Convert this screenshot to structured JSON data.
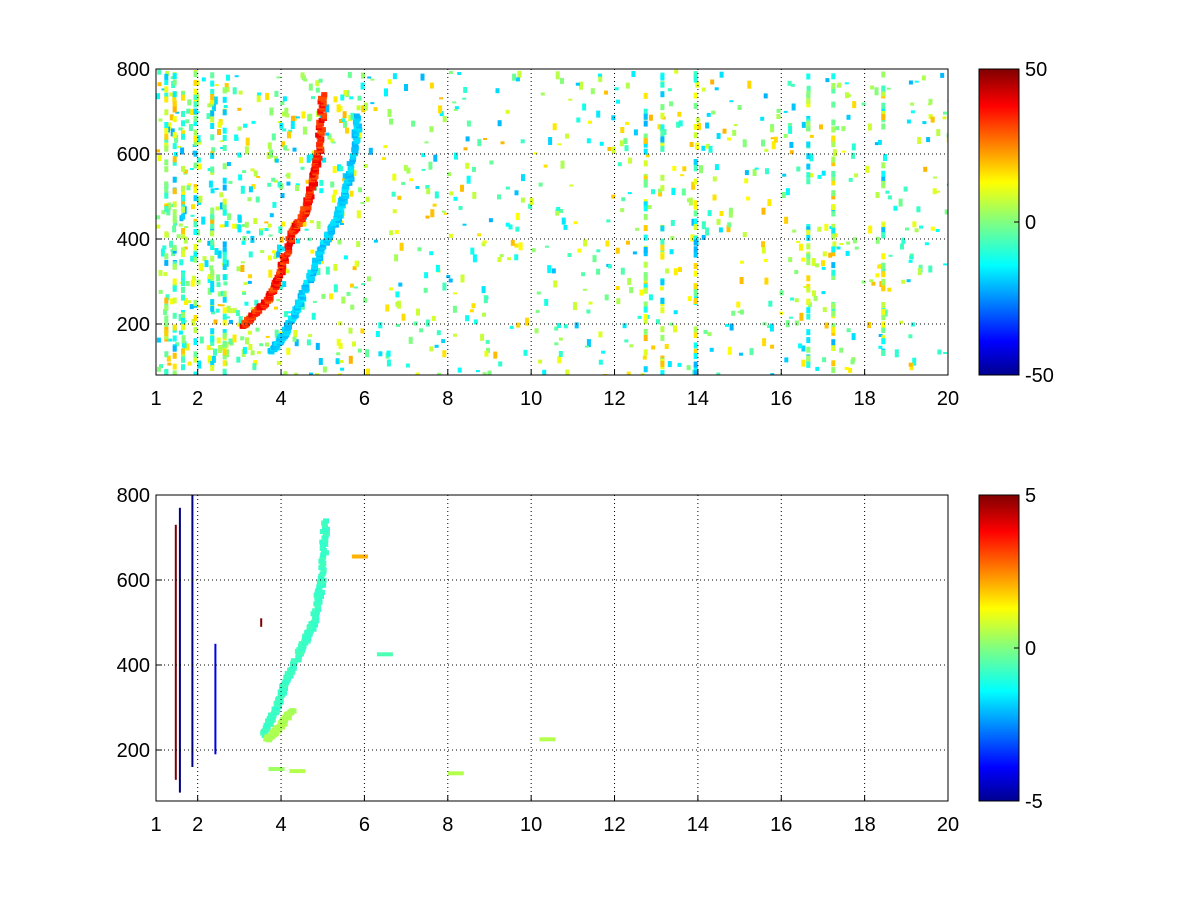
{
  "chart_data": [
    {
      "type": "heatmap",
      "title": "",
      "xlabel": "",
      "ylabel": "",
      "xlim": [
        1,
        20
      ],
      "ylim": [
        80,
        800
      ],
      "xticks": [
        1,
        2,
        4,
        6,
        8,
        10,
        12,
        14,
        16,
        18,
        20
      ],
      "yticks": [
        200,
        400,
        600,
        800
      ],
      "grid": true,
      "colormap": "jet",
      "colorbar": {
        "min": -50,
        "max": 50,
        "ticks": [
          -50,
          0,
          50
        ]
      },
      "ridges": [
        {
          "name": "",
          "x": [
            3.0,
            3.3,
            3.6,
            3.9,
            4.2,
            4.5,
            4.7,
            4.85,
            4.95
          ],
          "y": [
            200,
            230,
            260,
            320,
            420,
            470,
            540,
            620,
            750
          ],
          "value": 40
        },
        {
          "name": "",
          "x": [
            3.7,
            4.0,
            4.4,
            4.9,
            5.3,
            5.6,
            5.8
          ],
          "y": [
            140,
            180,
            260,
            380,
            460,
            560,
            700
          ],
          "value": -20
        }
      ],
      "noise": {
        "value_range": [
          -20,
          20
        ],
        "strong_columns_x": [
          1.2,
          1.4,
          1.6,
          1.9,
          2.3,
          2.6,
          12.7,
          13.1,
          13.9,
          16.6,
          17.2,
          18.4
        ]
      }
    },
    {
      "type": "heatmap",
      "title": "",
      "xlabel": "",
      "ylabel": "",
      "xlim": [
        1,
        20
      ],
      "ylim": [
        80,
        800
      ],
      "xticks": [
        1,
        2,
        4,
        6,
        8,
        10,
        12,
        14,
        16,
        18,
        20
      ],
      "yticks": [
        200,
        400,
        600,
        800
      ],
      "grid": true,
      "colormap": "jet",
      "colorbar": {
        "min": -5,
        "max": 5,
        "ticks": [
          -5,
          0,
          5
        ]
      },
      "ridges": [
        {
          "name": "",
          "x": [
            3.5,
            3.8,
            4.1,
            4.4,
            4.7,
            4.9,
            5.0
          ],
          "y": [
            240,
            300,
            380,
            440,
            500,
            600,
            750
          ],
          "value": -0.8
        },
        {
          "name": "",
          "x": [
            3.6,
            3.9,
            4.2
          ],
          "y": [
            230,
            260,
            300
          ],
          "value": 0.5
        }
      ],
      "streaks": [
        {
          "x": 1.45,
          "y": [
            130,
            730
          ],
          "value": 5
        },
        {
          "x": 1.55,
          "y": [
            100,
            770
          ],
          "value": -5
        },
        {
          "x": 1.85,
          "y": [
            160,
            800
          ],
          "value": -5
        },
        {
          "x": 2.4,
          "y": [
            190,
            450
          ],
          "value": -4
        },
        {
          "x": 3.5,
          "y": [
            490,
            510
          ],
          "value": 5
        }
      ],
      "spots": [
        {
          "x": 3.7,
          "y": 160,
          "value": 0.3
        },
        {
          "x": 4.2,
          "y": 155,
          "value": 0.5
        },
        {
          "x": 8.0,
          "y": 150,
          "value": 0.5
        },
        {
          "x": 10.2,
          "y": 230,
          "value": 0.5
        },
        {
          "x": 5.7,
          "y": 660,
          "value": 2
        },
        {
          "x": 6.3,
          "y": 430,
          "value": -0.5
        }
      ]
    }
  ]
}
